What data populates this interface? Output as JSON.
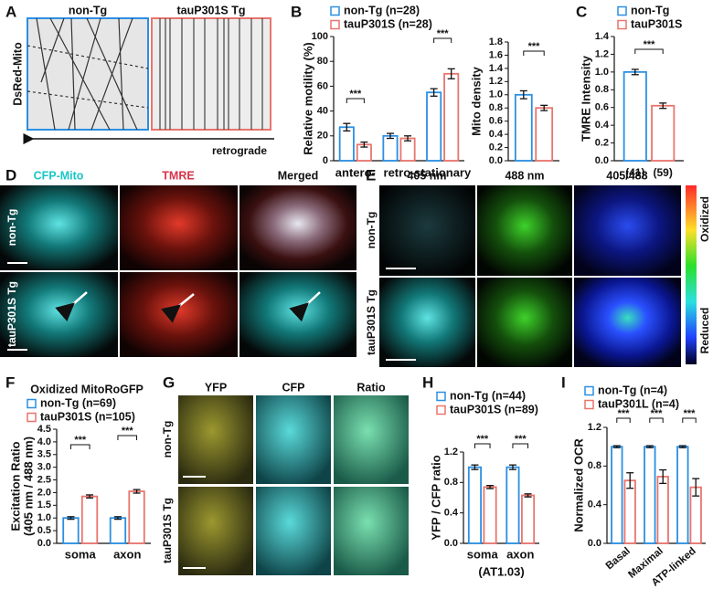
{
  "panel_letters": [
    "A",
    "B",
    "C",
    "D",
    "E",
    "F",
    "G",
    "H",
    "I"
  ],
  "image_panels": {
    "A": {
      "columns": [
        "non-Tg",
        "tauP301S Tg"
      ],
      "row_label": "DsRed-Mito",
      "arrow_label": "retrograde"
    },
    "D": {
      "columns": [
        "CFP-Mito",
        "TMRE",
        "Merged"
      ],
      "rows": [
        "non-Tg",
        "tauP301S Tg"
      ]
    },
    "E": {
      "columns": [
        "405 nm",
        "488 nm",
        "405/488"
      ],
      "rows": [
        "non-Tg",
        "tauP301S Tg"
      ],
      "colorbar": [
        "Oxidized",
        "Reduced"
      ]
    },
    "G": {
      "columns": [
        "YFP",
        "CFP",
        "Ratio"
      ],
      "rows": [
        "non-Tg",
        "tauP301S Tg"
      ]
    }
  },
  "chart_data": [
    {
      "type": "bar",
      "ylabel": "Relative motility (%)",
      "categories": [
        "antero-",
        "retro-",
        "stationary"
      ],
      "series": [
        {
          "name": "non-Tg (n=28)",
          "color": "#2b8fe3",
          "values": [
            27,
            20,
            55
          ],
          "errors": [
            3,
            2,
            3
          ]
        },
        {
          "name": "tauP301S (n=28)",
          "color": "#e9756d",
          "values": [
            13,
            18,
            70
          ],
          "errors": [
            2,
            2,
            4
          ]
        }
      ],
      "ylim": [
        0,
        100
      ],
      "yticks": [
        0,
        20,
        40,
        60,
        80,
        100
      ],
      "annotations": [
        "***",
        "***"
      ]
    },
    {
      "type": "bar",
      "ylabel": "Mito density",
      "categories": [
        null
      ],
      "series": [
        {
          "color": "#2b8fe3",
          "values": [
            1.0
          ],
          "errors": [
            0.06
          ]
        },
        {
          "color": "#e9756d",
          "values": [
            0.8
          ],
          "errors": [
            0.04
          ]
        }
      ],
      "ylim": [
        0,
        1.8
      ],
      "yticks": [
        {
          "value": 0,
          "label": "0.0"
        },
        0.2,
        0.4,
        0.6,
        0.8,
        {
          "value": 1,
          "label": "1.0"
        },
        1.2,
        1.4,
        1.6,
        1.8
      ],
      "annotations": [
        "***"
      ]
    },
    {
      "type": "bar",
      "ylabel": "TMRE Intensity",
      "categories": [
        null
      ],
      "n_labels": [
        "(41)",
        "(59)"
      ],
      "series": [
        {
          "name": "non-Tg",
          "color": "#2b8fe3",
          "values": [
            1.0
          ],
          "errors": [
            0.03
          ]
        },
        {
          "name": "tauP301S",
          "color": "#e9756d",
          "values": [
            0.62
          ],
          "errors": [
            0.03
          ]
        }
      ],
      "ylim": [
        0,
        1.4
      ],
      "yticks": [
        {
          "value": 0,
          "label": "0.0"
        },
        0.2,
        0.4,
        0.6,
        0.8,
        {
          "value": 1,
          "label": "1.0"
        },
        1.2,
        1.4
      ],
      "annotations": [
        "***"
      ]
    },
    {
      "type": "bar",
      "title": "Oxidized MitoRoGFP",
      "ylabel": [
        "Excitation Ratio",
        "(405 nm / 488 nm)"
      ],
      "categories": [
        "soma",
        "axon"
      ],
      "series": [
        {
          "name": "non-Tg (n=69)",
          "color": "#2b8fe3",
          "values": [
            1.0,
            1.0
          ],
          "errors": [
            0.05,
            0.05
          ]
        },
        {
          "name": "tauP301S (n=105)",
          "color": "#e9756d",
          "values": [
            1.85,
            2.05
          ],
          "errors": [
            0.06,
            0.07
          ]
        }
      ],
      "ylim": [
        0,
        4.5
      ],
      "yticks": [
        {
          "value": 0,
          "label": "0.0"
        },
        0.5,
        {
          "value": 1,
          "label": "1.0"
        },
        1.5,
        {
          "value": 2,
          "label": "2.0"
        },
        2.5,
        {
          "value": 3,
          "label": "3.0"
        },
        3.5,
        {
          "value": 4,
          "label": "4.0"
        },
        4.5
      ],
      "annotations": [
        "***",
        "***"
      ]
    },
    {
      "type": "bar",
      "ylabel": "YFP / CFP ratio",
      "xlabel": "(AT1.03)",
      "categories": [
        "soma",
        "axon"
      ],
      "series": [
        {
          "name": "non-Tg (n=44)",
          "color": "#2b8fe3",
          "values": [
            1.0,
            1.0
          ],
          "errors": [
            0.03,
            0.03
          ]
        },
        {
          "name": "tauP301S (n=89)",
          "color": "#e9756d",
          "values": [
            0.74,
            0.63
          ],
          "errors": [
            0.02,
            0.02
          ]
        }
      ],
      "ylim": [
        0,
        1.2
      ],
      "yticks": [
        {
          "value": 0,
          "label": "0.0"
        },
        0.4,
        0.8,
        1.2
      ],
      "annotations": [
        "***",
        "***"
      ]
    },
    {
      "type": "bar",
      "ylabel": "Normalized OCR",
      "categories": [
        "Basal",
        "Maximal",
        "ATP-linked"
      ],
      "series": [
        {
          "name": "non-Tg (n=4)",
          "color": "#2b8fe3",
          "values": [
            1.0,
            1.0,
            1.0
          ],
          "errors": [
            0.01,
            0.01,
            0.01
          ]
        },
        {
          "name": "tauP301L (n=4)",
          "color": "#e9756d",
          "values": [
            0.65,
            0.69,
            0.58
          ],
          "errors": [
            0.08,
            0.07,
            0.09
          ]
        }
      ],
      "ylim": [
        0,
        1.2
      ],
      "yticks": [
        {
          "value": 0,
          "label": "0.0"
        },
        0.4,
        0.8,
        1.2
      ],
      "annotations": [
        "***",
        "***",
        "***"
      ]
    }
  ]
}
